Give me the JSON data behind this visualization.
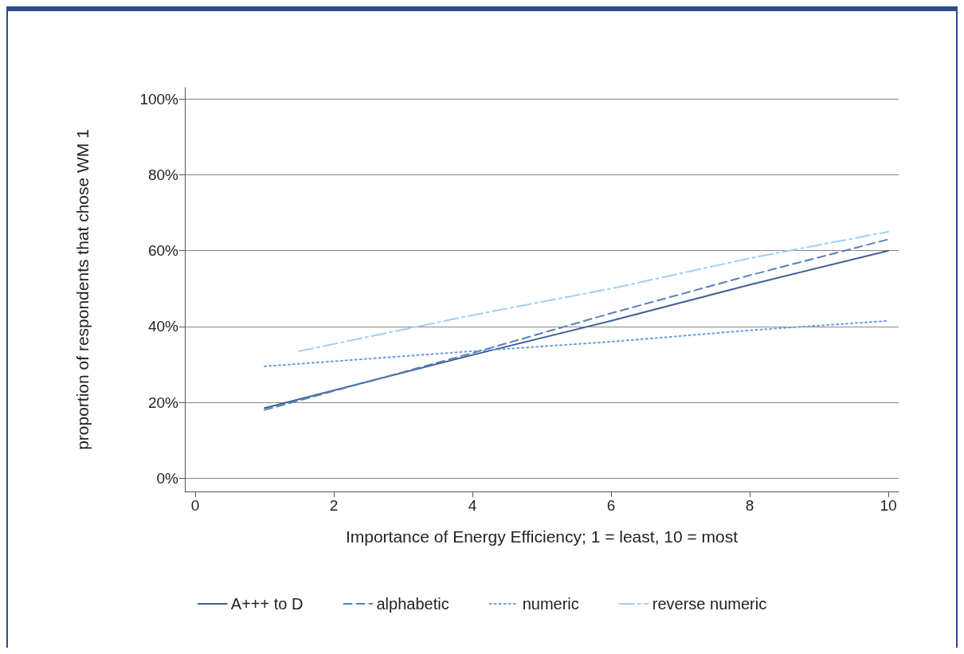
{
  "chart_data": {
    "type": "line",
    "xlabel": "Importance of Energy Efficiency; 1 = least, 10 = most",
    "ylabel": "proportion of respondents that chose WM 1",
    "series": [
      {
        "name": "A+++ to D",
        "color": "#3d5f93",
        "line_style": "solid",
        "x": [
          1,
          4,
          6,
          8,
          10
        ],
        "values": [
          18.5,
          32.5,
          41.5,
          51,
          60
        ]
      },
      {
        "name": "alphabetic",
        "color": "#5a7fb8",
        "line_style": "dashed",
        "x": [
          1,
          4,
          6,
          8,
          10
        ],
        "values": [
          18,
          33,
          43.5,
          53.5,
          63
        ]
      },
      {
        "name": "numeric",
        "color": "#6a9be0",
        "line_style": "dotted",
        "x": [
          1,
          4,
          6,
          8,
          10
        ],
        "values": [
          29.5,
          33.5,
          36,
          39,
          41.5
        ]
      },
      {
        "name": "reverse numeric",
        "color": "#9fcdf7",
        "line_style": "dashdot",
        "x": [
          1.5,
          4,
          6,
          8,
          10
        ],
        "values": [
          33.5,
          43,
          50,
          58,
          65
        ]
      }
    ],
    "xlim": [
      -0.15,
      10.15
    ],
    "xticks": [
      0,
      2,
      4,
      6,
      8,
      10
    ],
    "ylim": [
      -3.5,
      103
    ],
    "yticks": [
      {
        "value": 0,
        "label": "0%"
      },
      {
        "value": 20,
        "label": "20%"
      },
      {
        "value": 40,
        "label": "40%"
      },
      {
        "value": 60,
        "label": "60%"
      },
      {
        "value": 80,
        "label": "80%"
      },
      {
        "value": 100,
        "label": "100%"
      }
    ],
    "grid": "y",
    "legend": "bottom",
    "marker": "none"
  }
}
